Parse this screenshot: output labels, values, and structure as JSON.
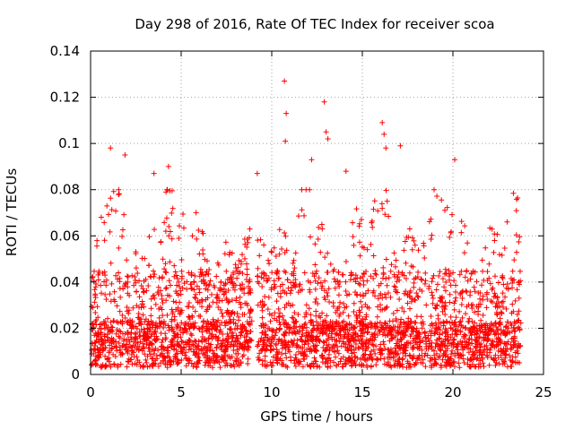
{
  "chart_data": {
    "type": "scatter",
    "title": "Day 298 of 2016, Rate Of TEC Index for receiver scoa",
    "xlabel": "GPS time / hours",
    "ylabel": "ROTI / TECUs",
    "xlim": [
      0,
      25
    ],
    "ylim": [
      0,
      0.14
    ],
    "x_ticks": [
      0,
      5,
      10,
      15,
      20,
      25
    ],
    "x_tick_labels": [
      "0",
      "5",
      "10",
      "15",
      "20",
      "25"
    ],
    "y_ticks": [
      0,
      0.02,
      0.04,
      0.06,
      0.08,
      0.1,
      0.12,
      0.14
    ],
    "y_tick_labels": [
      "0",
      "0.02",
      "0.04",
      "0.06",
      "0.08",
      "0.1",
      "0.12",
      "0.14"
    ],
    "grid": true,
    "marker": "+",
    "marker_color": "#ff0000",
    "data_gap_hours": [
      8.9,
      9.2
    ],
    "series": [
      {
        "name": "ROTI",
        "bulk_range": [
          0.003,
          0.08
        ],
        "outliers": [
          {
            "x": 1.1,
            "y": 0.098
          },
          {
            "x": 1.9,
            "y": 0.095
          },
          {
            "x": 4.3,
            "y": 0.09
          },
          {
            "x": 10.7,
            "y": 0.127
          },
          {
            "x": 10.8,
            "y": 0.113
          },
          {
            "x": 10.75,
            "y": 0.101
          },
          {
            "x": 12.9,
            "y": 0.118
          },
          {
            "x": 13.0,
            "y": 0.105
          },
          {
            "x": 13.1,
            "y": 0.102
          },
          {
            "x": 16.1,
            "y": 0.109
          },
          {
            "x": 16.2,
            "y": 0.104
          },
          {
            "x": 16.3,
            "y": 0.098
          },
          {
            "x": 17.1,
            "y": 0.099
          },
          {
            "x": 20.1,
            "y": 0.093
          },
          {
            "x": 12.2,
            "y": 0.093
          },
          {
            "x": 9.2,
            "y": 0.087
          },
          {
            "x": 3.5,
            "y": 0.087
          },
          {
            "x": 14.1,
            "y": 0.088
          }
        ]
      }
    ]
  }
}
